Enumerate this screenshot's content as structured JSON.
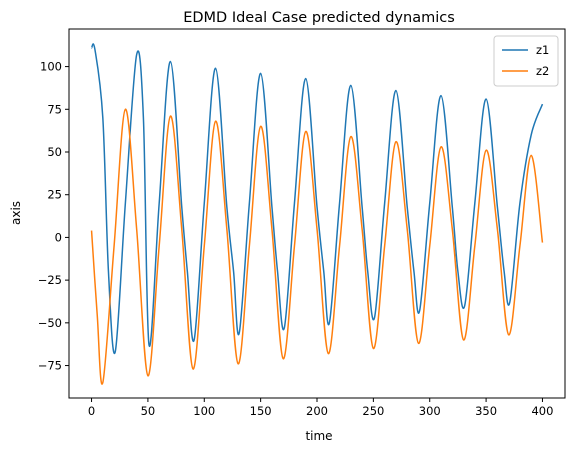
{
  "chart_data": {
    "type": "line",
    "title": "EDMD Ideal Case predicted dynamics",
    "xlabel": "time",
    "ylabel": "axis",
    "xlim": [
      -20,
      420
    ],
    "ylim": [
      -94,
      122
    ],
    "xticks": [
      0,
      50,
      100,
      150,
      200,
      250,
      300,
      350,
      400
    ],
    "yticks": [
      -75,
      -50,
      -25,
      0,
      25,
      50,
      75,
      100
    ],
    "xtick_labels": [
      "0",
      "50",
      "100",
      "150",
      "200",
      "250",
      "300",
      "350",
      "400"
    ],
    "ytick_labels": [
      "−75",
      "−50",
      "−25",
      "0",
      "25",
      "50",
      "75",
      "100"
    ],
    "legend_position": "top-right",
    "grid": false,
    "series": [
      {
        "name": "z1",
        "color": "#1f77b4",
        "x": [
          0,
          3,
          10,
          15,
          21,
          30,
          40,
          46,
          51,
          60,
          70,
          80,
          85,
          91,
          100,
          110,
          120,
          126,
          131,
          140,
          150,
          160,
          165,
          171,
          180,
          190,
          200,
          206,
          211,
          220,
          230,
          240,
          245,
          251,
          260,
          270,
          280,
          286,
          291,
          300,
          310,
          320,
          325,
          331,
          340,
          350,
          360,
          366,
          371,
          380,
          390,
          400
        ],
        "values": [
          111,
          110,
          70,
          -20,
          -67,
          20,
          107,
          70,
          -63,
          20,
          103,
          18,
          -20,
          -60,
          20,
          99,
          18,
          -20,
          -56,
          20,
          96,
          18,
          -20,
          -53,
          20,
          93,
          18,
          -20,
          -50,
          20,
          89,
          18,
          -20,
          -47,
          20,
          86,
          18,
          -20,
          -43,
          20,
          83,
          18,
          -20,
          -40,
          20,
          81,
          18,
          -20,
          -38,
          20,
          60,
          78
        ]
      },
      {
        "name": "z2",
        "color": "#ff7f0e",
        "x": [
          0,
          5,
          10,
          20,
          30,
          40,
          50,
          60,
          70,
          80,
          90,
          100,
          110,
          120,
          130,
          140,
          150,
          160,
          170,
          180,
          190,
          200,
          210,
          220,
          230,
          240,
          250,
          260,
          270,
          280,
          290,
          300,
          310,
          320,
          330,
          340,
          350,
          360,
          370,
          380,
          390,
          400
        ],
        "values": [
          4,
          -45,
          -85,
          -5,
          75,
          5,
          -81,
          -5,
          71,
          5,
          -77,
          -5,
          68,
          5,
          -74,
          -5,
          65,
          5,
          -71,
          -5,
          62,
          5,
          -68,
          -5,
          59,
          5,
          -65,
          -5,
          56,
          5,
          -62,
          -5,
          53,
          5,
          -60,
          -5,
          51,
          5,
          -57,
          -5,
          48,
          -3
        ]
      }
    ]
  }
}
